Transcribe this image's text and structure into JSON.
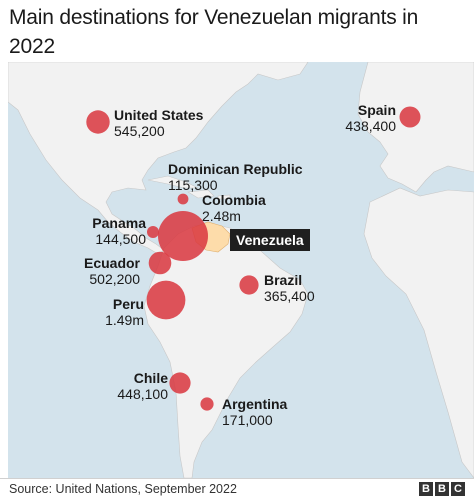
{
  "title": "Main destinations for Venezuelan migrants in 2022",
  "origin": {
    "name": "Venezuela",
    "color": "#fddcaa"
  },
  "bubble_color": "#d9363e",
  "destinations": [
    {
      "name": "United States",
      "value": "545,200",
      "migrants": 545200
    },
    {
      "name": "Spain",
      "value": "438,400",
      "migrants": 438400
    },
    {
      "name": "Dominican Republic",
      "value": "115,300",
      "migrants": 115300
    },
    {
      "name": "Colombia",
      "value": "2.48m",
      "migrants": 2480000
    },
    {
      "name": "Panama",
      "value": "144,500",
      "migrants": 144500
    },
    {
      "name": "Ecuador",
      "value": "502,200",
      "migrants": 502200
    },
    {
      "name": "Brazil",
      "value": "365,400",
      "migrants": 365400
    },
    {
      "name": "Peru",
      "value": "1.49m",
      "migrants": 1490000
    },
    {
      "name": "Chile",
      "value": "448,100",
      "migrants": 448100
    },
    {
      "name": "Argentina",
      "value": "171,000",
      "migrants": 171000
    }
  ],
  "source": "Source: United Nations, September 2022",
  "logo": [
    "B",
    "B",
    "C"
  ]
}
